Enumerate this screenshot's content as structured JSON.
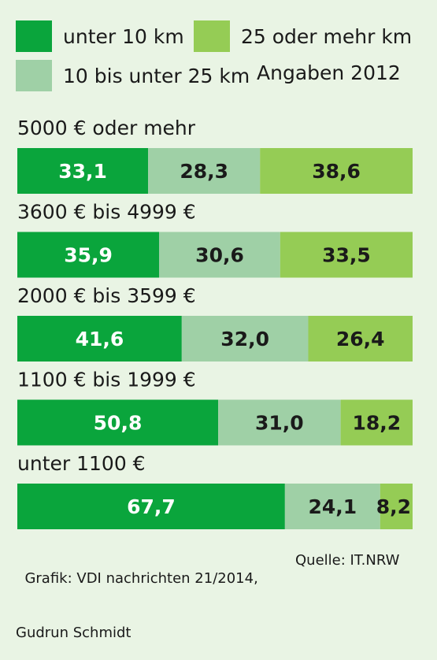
{
  "legend": {
    "items": [
      {
        "label": "unter 10 km",
        "color": "#0aa53c"
      },
      {
        "label": "25 oder mehr km",
        "color": "#95cc55"
      },
      {
        "label": "10 bis unter 25 km",
        "color": "#9fd0a6"
      }
    ],
    "note": "Angaben 2012"
  },
  "chart_data": {
    "type": "bar",
    "orientation": "horizontal",
    "stacked": true,
    "value_type": "percent",
    "xlim": [
      0,
      100
    ],
    "categories": [
      "5000 € oder mehr",
      "3600 € bis 4999 €",
      "2000 € bis 3599 €",
      "1100 € bis 1999 €",
      "unter 1100 €"
    ],
    "series": [
      {
        "name": "unter 10 km",
        "color": "#0aa53c",
        "label_color": "#ffffff",
        "values": [
          33.1,
          35.9,
          41.6,
          50.8,
          67.7
        ],
        "labels": [
          "33,1",
          "35,9",
          "41,6",
          "50,8",
          "67,7"
        ]
      },
      {
        "name": "10 bis unter 25 km",
        "color": "#9fd0a6",
        "label_color": "#1a1a1a",
        "values": [
          28.3,
          30.6,
          32.0,
          31.0,
          24.1
        ],
        "labels": [
          "28,3",
          "30,6",
          "32,0",
          "31,0",
          "24,1"
        ]
      },
      {
        "name": "25 oder mehr km",
        "color": "#95cc55",
        "label_color": "#1a1a1a",
        "values": [
          38.6,
          33.5,
          26.4,
          18.2,
          8.2
        ],
        "labels": [
          "38,6",
          "33,5",
          "26,4",
          "18,2",
          "8,2"
        ]
      }
    ]
  },
  "source": {
    "line1_left": "Grafik: VDI nachrichten 21/2014,",
    "line1_right": "Quelle: IT.NRW",
    "line2": "Gudrun Schmidt"
  }
}
